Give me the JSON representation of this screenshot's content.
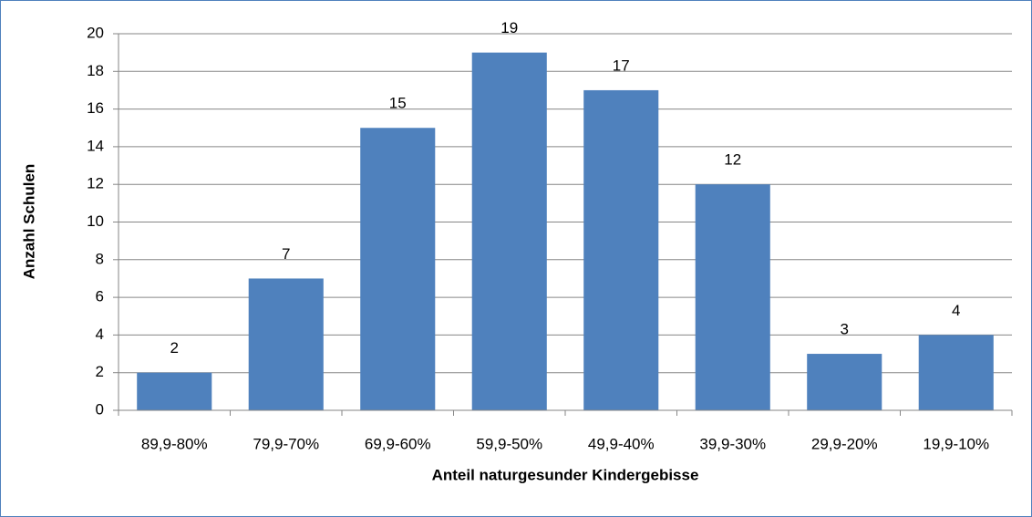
{
  "chart_data": {
    "type": "bar",
    "x_label": "Anteil naturgesunder Kindergebisse",
    "y_label": "Anzahl Schulen",
    "categories": [
      "89,9-80%",
      "79,9-70%",
      "69,9-60%",
      "59,9-50%",
      "49,9-40%",
      "39,9-30%",
      "29,9-20%",
      "19,9-10%"
    ],
    "values": [
      2,
      7,
      15,
      19,
      17,
      12,
      3,
      4
    ],
    "color": "#4f81bd",
    "ylim": [
      0,
      20
    ],
    "yticks": [
      0,
      2,
      4,
      6,
      8,
      10,
      12,
      14,
      16,
      18,
      20
    ],
    "grid": true
  }
}
